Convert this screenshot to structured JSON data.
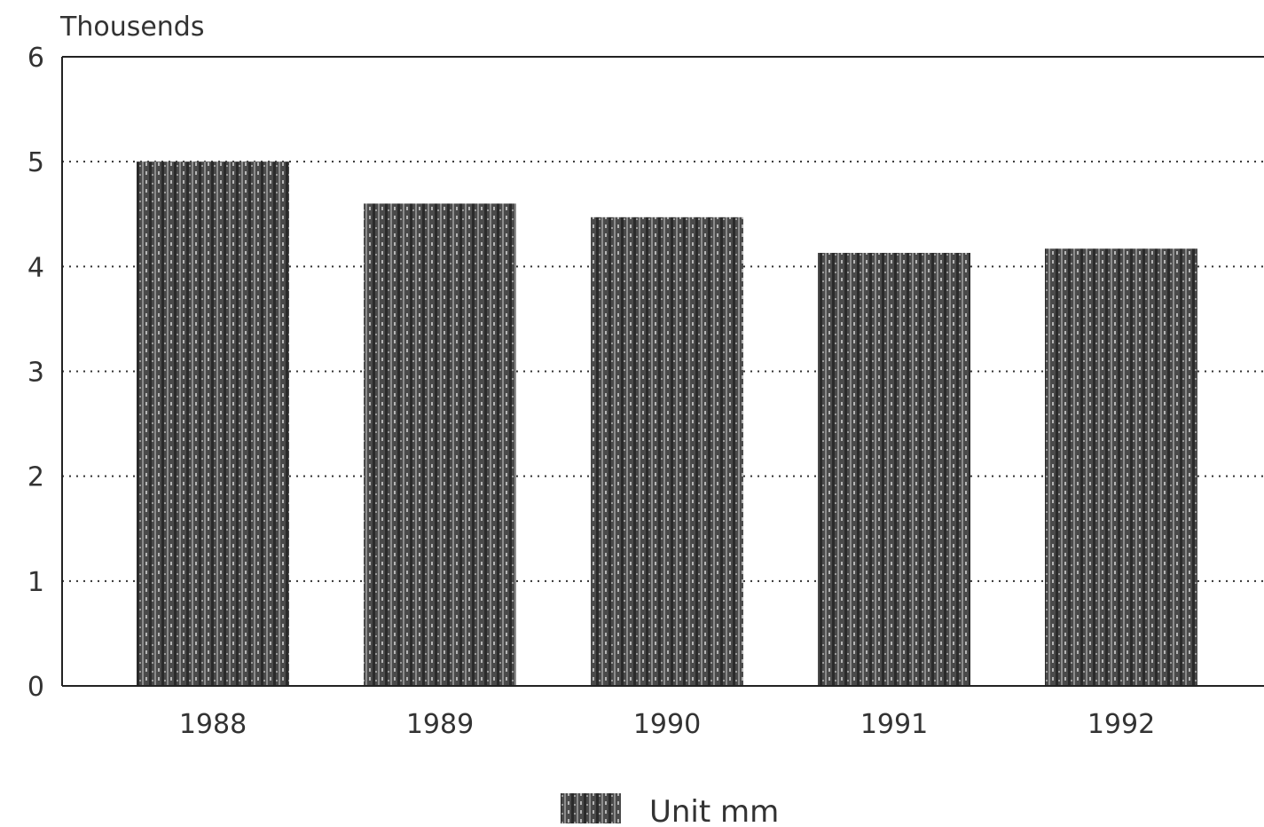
{
  "chart_data": {
    "type": "bar",
    "unit_label": "Thousends",
    "categories": [
      "1988",
      "1989",
      "1990",
      "1991",
      "1992"
    ],
    "series": [
      {
        "name": "Unit mm",
        "values": [
          5.0,
          4.6,
          4.47,
          4.13,
          4.17
        ]
      }
    ],
    "yticks": [
      "0",
      "1",
      "2",
      "3",
      "4",
      "5",
      "6"
    ],
    "ylim": [
      0,
      6
    ],
    "grid": "horizontal dotted",
    "legend_position": "bottom-center",
    "bar_color": "#4a4a4a"
  }
}
